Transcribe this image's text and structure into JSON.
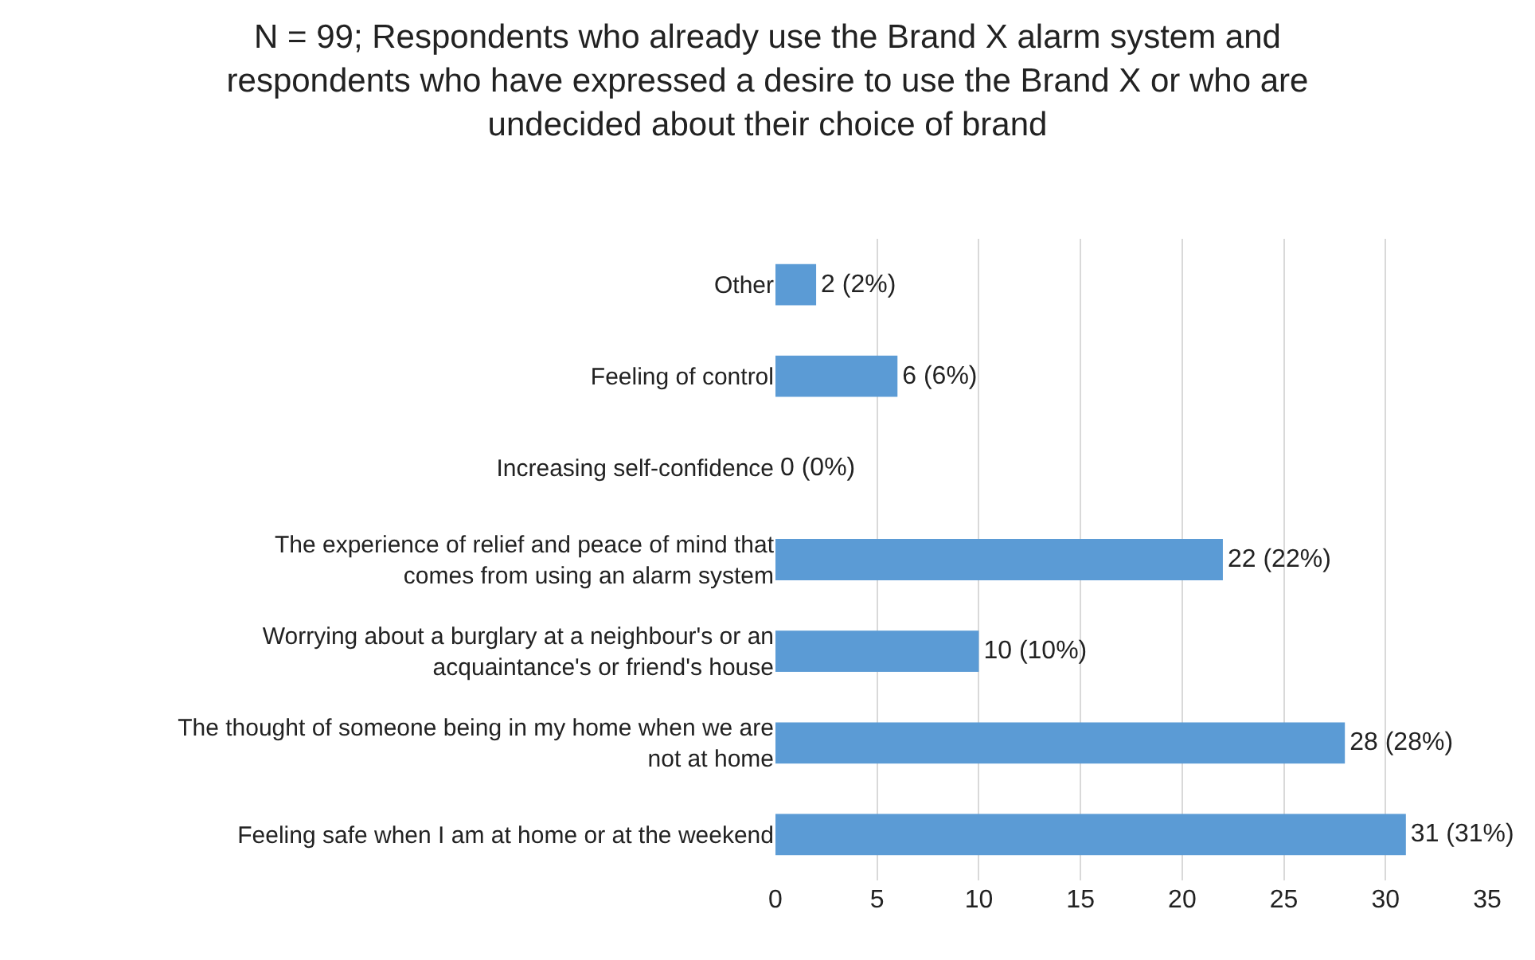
{
  "chart_data": {
    "type": "bar",
    "orientation": "horizontal",
    "title": "N = 99; Respondents who already use the Brand X alarm system and respondents who have expressed a desire to use the Brand X or who are undecided about their choice of brand",
    "categories": [
      "Other",
      "Feeling of control",
      "Increasing self-confidence",
      "The experience of relief and peace of mind that comes from using an alarm system",
      "Worrying about a burglary at a neighbour's or an acquaintance's or friend's house",
      "The thought of someone being in my home when we are not at home",
      "Feeling safe when I am at home or at the weekend"
    ],
    "values": [
      2,
      6,
      0,
      22,
      10,
      28,
      31
    ],
    "value_labels": [
      "2 (2%)",
      "6 (6%)",
      "0 (0%)",
      "22 (22%)",
      "10 (10%)",
      "28 (28%)",
      "31 (31%)"
    ],
    "color": "#5b9bd5",
    "xlim": [
      0,
      35
    ],
    "xticks": [
      0,
      5,
      10,
      15,
      20,
      25,
      30,
      35
    ],
    "grid": "x"
  }
}
